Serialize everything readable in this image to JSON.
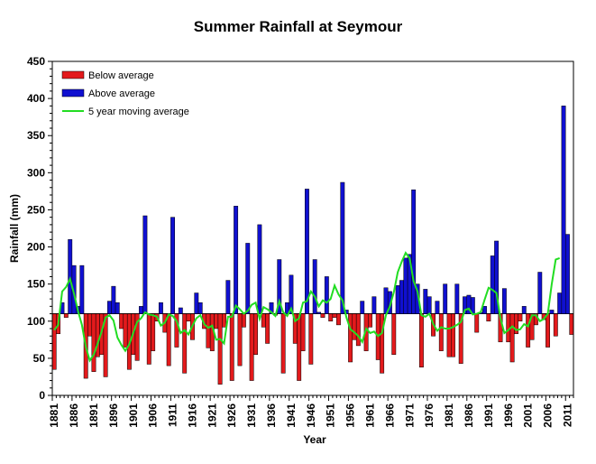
{
  "chart_data": {
    "type": "bar",
    "title": "Summer Rainfall at Seymour",
    "xlabel": "Year",
    "ylabel": "Rainfall (mm)",
    "ylim": [
      0,
      450
    ],
    "yticks": [
      0,
      50,
      100,
      150,
      200,
      250,
      300,
      350,
      400,
      450
    ],
    "xticks": [
      1881,
      1886,
      1891,
      1896,
      1901,
      1906,
      1911,
      1916,
      1921,
      1926,
      1931,
      1936,
      1941,
      1946,
      1951,
      1956,
      1961,
      1966,
      1971,
      1976,
      1981,
      1986,
      1991,
      1996,
      2001,
      2006,
      2011
    ],
    "baseline": 110,
    "legend_position": "top-left",
    "colors": {
      "below": "#e31a1c",
      "above": "#1010d0",
      "moving_average": "#22dd22"
    },
    "legend": [
      {
        "key": "below",
        "label": "Below average"
      },
      {
        "key": "above",
        "label": "Above average"
      },
      {
        "key": "moving_average",
        "label": "5 year moving average"
      }
    ],
    "years": [
      1881,
      1882,
      1883,
      1884,
      1885,
      1886,
      1887,
      1888,
      1889,
      1890,
      1891,
      1892,
      1893,
      1894,
      1895,
      1896,
      1897,
      1898,
      1899,
      1900,
      1901,
      1902,
      1903,
      1904,
      1905,
      1906,
      1907,
      1908,
      1909,
      1910,
      1911,
      1912,
      1913,
      1914,
      1915,
      1916,
      1917,
      1918,
      1919,
      1920,
      1921,
      1922,
      1923,
      1924,
      1925,
      1926,
      1927,
      1928,
      1929,
      1930,
      1931,
      1932,
      1933,
      1934,
      1935,
      1936,
      1937,
      1938,
      1939,
      1940,
      1941,
      1942,
      1943,
      1944,
      1945,
      1946,
      1947,
      1948,
      1949,
      1950,
      1951,
      1952,
      1953,
      1954,
      1955,
      1956,
      1957,
      1958,
      1959,
      1960,
      1961,
      1962,
      1963,
      1964,
      1965,
      1966,
      1967,
      1968,
      1969,
      1970,
      1971,
      1972,
      1973,
      1974,
      1975,
      1976,
      1977,
      1978,
      1979,
      1980,
      1981,
      1982,
      1983,
      1984,
      1985,
      1986,
      1987,
      1988,
      1989,
      1990,
      1991,
      1992,
      1993,
      1994,
      1995,
      1996,
      1997,
      1998,
      1999,
      2000,
      2001,
      2002,
      2003,
      2004,
      2005,
      2006,
      2007,
      2008,
      2009,
      2010,
      2011,
      2012
    ],
    "rainfall": [
      35,
      83,
      125,
      105,
      210,
      175,
      120,
      175,
      23,
      80,
      32,
      52,
      55,
      25,
      127,
      147,
      125,
      90,
      65,
      35,
      55,
      47,
      120,
      242,
      42,
      60,
      100,
      125,
      85,
      40,
      240,
      65,
      118,
      30,
      100,
      75,
      138,
      125,
      90,
      64,
      60,
      90,
      15,
      92,
      155,
      20,
      255,
      40,
      92,
      205,
      20,
      55,
      230,
      92,
      70,
      125,
      108,
      183,
      30,
      125,
      162,
      70,
      20,
      60,
      278,
      42,
      183,
      112,
      105,
      160,
      100,
      105,
      95,
      287,
      115,
      45,
      75,
      67,
      127,
      60,
      92,
      133,
      48,
      30,
      145,
      140,
      55,
      148,
      155,
      185,
      190,
      277,
      150,
      38,
      143,
      133,
      80,
      127,
      60,
      150,
      52,
      52,
      150,
      43,
      133,
      135,
      132,
      85,
      112,
      120,
      100,
      188,
      208,
      72,
      144,
      72,
      45,
      83,
      100,
      120,
      65,
      75,
      95,
      166,
      102,
      65,
      115,
      80,
      138,
      390,
      217,
      82
    ],
    "moving_average": [
      88,
      95,
      140,
      146,
      157,
      137,
      114,
      95,
      65,
      47,
      55,
      70,
      86,
      105,
      108,
      101,
      78,
      68,
      60,
      69,
      84,
      99,
      104,
      112,
      109,
      108,
      106,
      94,
      98,
      109,
      107,
      100,
      84,
      88,
      82,
      94,
      104,
      108,
      96,
      91,
      94,
      75,
      76,
      70,
      106,
      106,
      121,
      116,
      110,
      114,
      122,
      125,
      103,
      119,
      116,
      112,
      107,
      127,
      112,
      107,
      117,
      100,
      104,
      125,
      127,
      140,
      133,
      120,
      128,
      125,
      130,
      148,
      136,
      128,
      105,
      89,
      85,
      80,
      72,
      90,
      84,
      86,
      80,
      84,
      108,
      120,
      139,
      166,
      180,
      192,
      185,
      154,
      140,
      108,
      106,
      110,
      96,
      87,
      92,
      90,
      90,
      92,
      95,
      99,
      115,
      117,
      109,
      110,
      112,
      129,
      145,
      142,
      138,
      104,
      84,
      88,
      93,
      88,
      89,
      96,
      93,
      108,
      108,
      100,
      103,
      110,
      150,
      183,
      185
    ]
  }
}
